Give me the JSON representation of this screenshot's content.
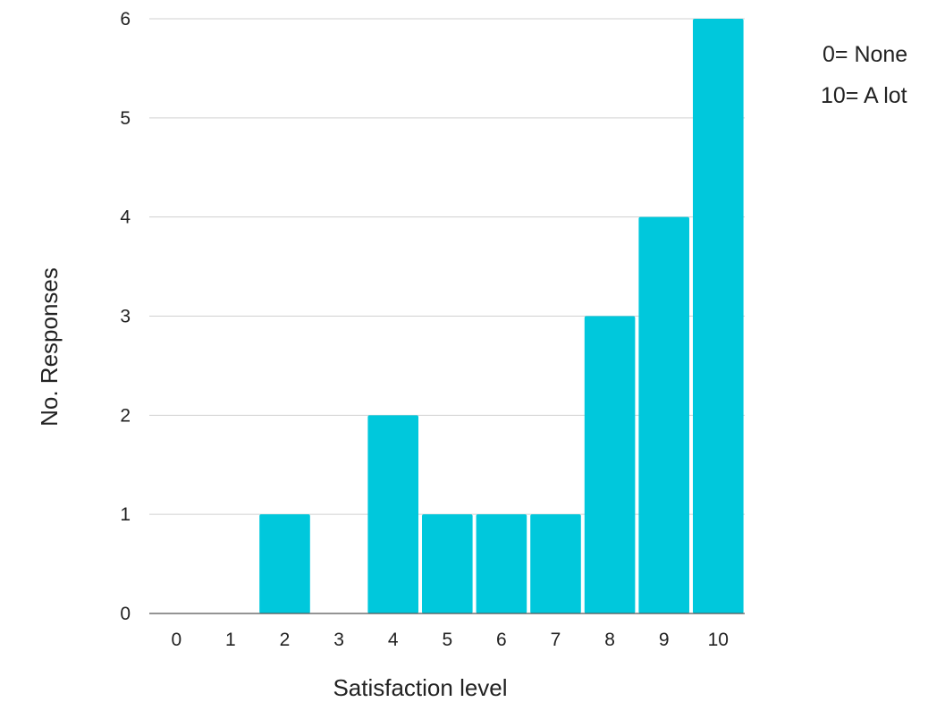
{
  "chart_data": {
    "type": "bar",
    "categories": [
      "0",
      "1",
      "2",
      "3",
      "4",
      "5",
      "6",
      "7",
      "8",
      "9",
      "10"
    ],
    "values": [
      0,
      0,
      1,
      0,
      2,
      1,
      1,
      1,
      3,
      4,
      6
    ],
    "xlabel": "Satisfaction level",
    "ylabel": "No. Responses",
    "ylim": [
      0,
      6
    ],
    "yticks": [
      0,
      1,
      2,
      3,
      4,
      5,
      6
    ],
    "grid": true,
    "bar_color": "#00c8dc",
    "legend_notes": [
      "0= None",
      "10= A lot"
    ]
  }
}
